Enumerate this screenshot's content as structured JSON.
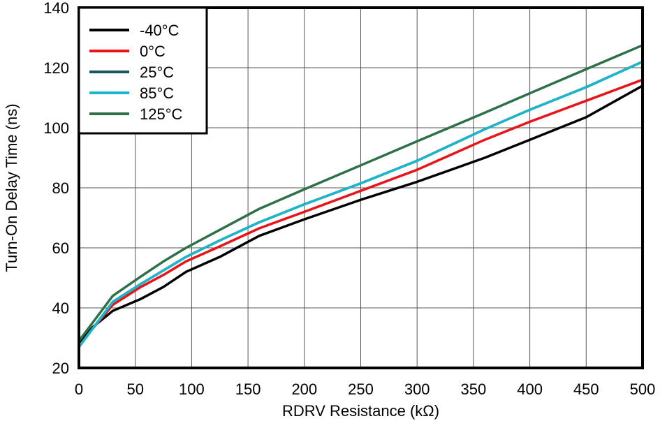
{
  "chart_data": {
    "type": "line",
    "title": "",
    "xlabel": "RDRV Resistance (kΩ)",
    "ylabel": "Turn-On Delay Time (ns)",
    "xlim": [
      0,
      500
    ],
    "ylim": [
      20,
      140
    ],
    "xticks": [
      0,
      50,
      100,
      150,
      200,
      250,
      300,
      350,
      400,
      450,
      500
    ],
    "yticks": [
      20,
      40,
      60,
      80,
      100,
      120,
      140
    ],
    "grid": true,
    "legend_position": "top-left",
    "series": [
      {
        "name": "-40°C",
        "color": "#000000",
        "x": [
          0,
          12,
          30,
          55,
          75,
          95,
          125,
          160,
          200,
          250,
          300,
          360,
          400,
          450,
          500
        ],
        "y": [
          28,
          33.5,
          39,
          43,
          47,
          52,
          57,
          64,
          69.5,
          76,
          82,
          90,
          96,
          103.5,
          114
        ]
      },
      {
        "name": "0°C",
        "color": "#e8141a",
        "x": [
          0,
          12,
          30,
          55,
          75,
          95,
          125,
          160,
          200,
          250,
          300,
          360,
          400,
          450,
          500
        ],
        "y": [
          27,
          33,
          41,
          47,
          51,
          55.5,
          60.5,
          66.5,
          72,
          79,
          86,
          96,
          102,
          109,
          116
        ]
      },
      {
        "name": "25°C",
        "color": "#1a5560",
        "x": [
          0,
          12,
          30,
          55,
          75,
          95,
          125,
          160,
          200,
          250,
          300,
          360,
          400,
          450,
          500
        ],
        "y": [
          27,
          33,
          42,
          48,
          52.5,
          57,
          62.5,
          68.5,
          74.5,
          81.5,
          89,
          99.5,
          106,
          113.5,
          122
        ]
      },
      {
        "name": "85°C",
        "color": "#1bb6cc",
        "x": [
          0,
          12,
          30,
          55,
          75,
          95,
          125,
          160,
          200,
          250,
          300,
          360,
          400,
          450,
          500
        ],
        "y": [
          27,
          33,
          42,
          48,
          52.5,
          57,
          62.5,
          68.5,
          74.5,
          81.5,
          89,
          99.5,
          106,
          113.5,
          122
        ]
      },
      {
        "name": "125°C",
        "color": "#2e7048",
        "x": [
          0,
          12,
          30,
          55,
          75,
          95,
          125,
          160,
          200,
          250,
          300,
          360,
          400,
          450,
          500
        ],
        "y": [
          29,
          35,
          44,
          50.5,
          55.5,
          60,
          66,
          73,
          79.5,
          87.5,
          95.5,
          105,
          111.5,
          119.5,
          127.5
        ]
      }
    ]
  }
}
